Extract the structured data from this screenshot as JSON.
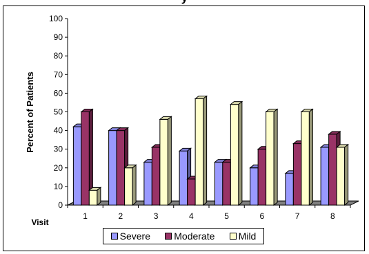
{
  "chart_data": {
    "type": "bar",
    "title": "y",
    "xlabel": "Visit",
    "ylabel": "Percent of Patients",
    "categories": [
      "1",
      "2",
      "3",
      "4",
      "5",
      "6",
      "7",
      "8"
    ],
    "ylim": [
      0,
      100
    ],
    "yticks": [
      "0",
      "10",
      "20",
      "30",
      "40",
      "50",
      "60",
      "70",
      "80",
      "90",
      "100"
    ],
    "series": [
      {
        "name": "Severe",
        "color": "#9999ff",
        "values": [
          42,
          40,
          23,
          29,
          23,
          20,
          17,
          31
        ]
      },
      {
        "name": "Moderate",
        "color": "#993366",
        "values": [
          50,
          40,
          31,
          14,
          23,
          30,
          33,
          38
        ]
      },
      {
        "name": "Mild",
        "color": "#ffffcc",
        "values": [
          8,
          20,
          46,
          57,
          54,
          50,
          50,
          31
        ]
      }
    ],
    "grid": false,
    "legend_position": "bottom"
  }
}
